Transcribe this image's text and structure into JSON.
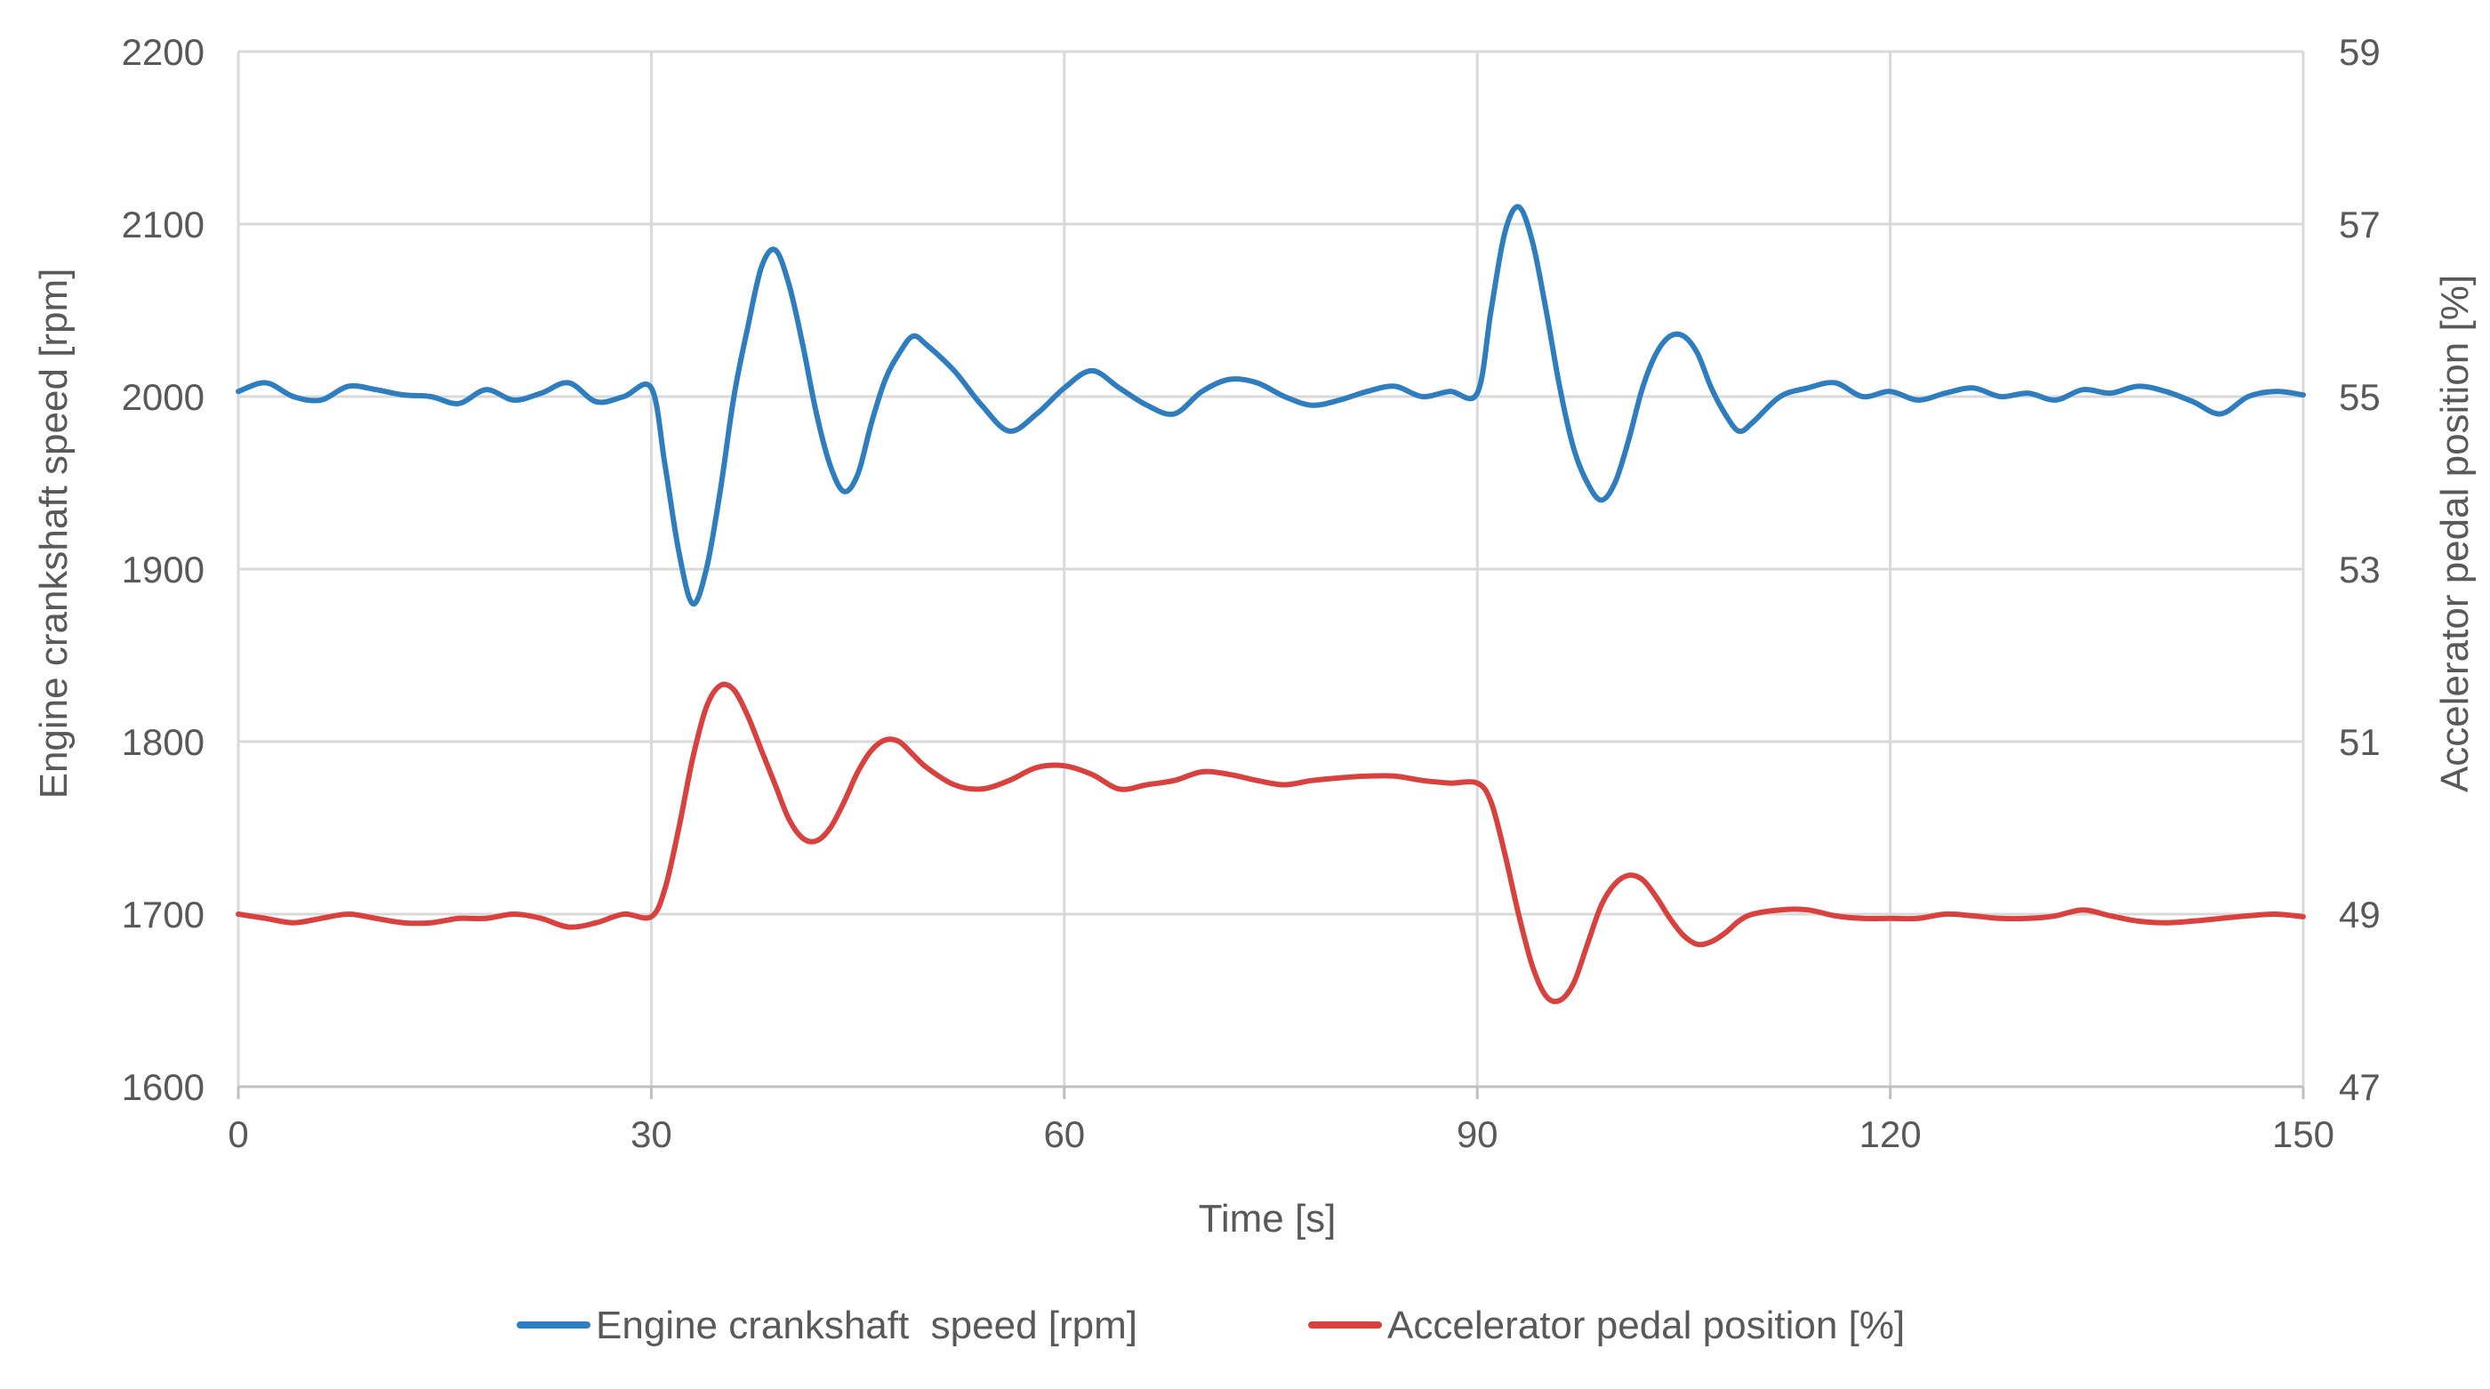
{
  "chart_data": {
    "type": "line",
    "xlabel": "Time [s]",
    "ylabel": "Engine crankshaft speed [rpm]",
    "y2label": "Accelerator pedal position [%]",
    "xlim": [
      0,
      150
    ],
    "ylim": [
      1600,
      2200
    ],
    "y2lim": [
      47,
      59
    ],
    "xticks": [
      "0",
      "30",
      "60",
      "90",
      "120",
      "150"
    ],
    "yticks": [
      "1600",
      "1700",
      "1800",
      "1900",
      "2000",
      "2100",
      "2200"
    ],
    "y2ticks": [
      "47",
      "49",
      "51",
      "53",
      "55",
      "57",
      "59"
    ],
    "grid": true,
    "legend_position": "bottom",
    "series": [
      {
        "name": "Engine crankshaft  speed [rpm]",
        "axis": "left",
        "color": "#2E7EBF",
        "x": [
          0,
          2,
          4,
          6,
          8,
          10,
          12,
          14,
          16,
          18,
          20,
          22,
          24,
          26,
          28,
          30,
          31,
          32,
          33,
          34,
          35,
          36,
          37,
          38,
          39,
          40,
          41,
          42,
          43,
          44,
          45,
          46,
          47,
          48,
          49,
          50,
          52,
          54,
          56,
          58,
          60,
          62,
          64,
          66,
          68,
          70,
          72,
          74,
          76,
          78,
          80,
          82,
          84,
          86,
          88,
          90,
          91,
          92,
          93,
          94,
          95,
          96,
          97,
          98,
          99,
          100,
          101,
          102,
          103,
          104,
          105,
          106,
          107,
          108,
          109,
          110,
          112,
          114,
          116,
          118,
          120,
          122,
          124,
          126,
          128,
          130,
          132,
          134,
          136,
          138,
          140,
          142,
          144,
          146,
          148,
          150
        ],
        "values": [
          2003,
          2008,
          2000,
          1998,
          2006,
          2004,
          2001,
          2000,
          1996,
          2004,
          1998,
          2002,
          2008,
          1997,
          2000,
          2005,
          1960,
          1910,
          1880,
          1900,
          1945,
          2000,
          2040,
          2075,
          2085,
          2065,
          2030,
          1990,
          1960,
          1945,
          1955,
          1985,
          2010,
          2025,
          2035,
          2030,
          2015,
          1995,
          1980,
          1990,
          2005,
          2015,
          2005,
          1995,
          1990,
          2003,
          2010,
          2008,
          2000,
          1995,
          1998,
          2003,
          2006,
          2000,
          2003,
          2002,
          2050,
          2095,
          2110,
          2090,
          2050,
          2005,
          1970,
          1950,
          1940,
          1950,
          1975,
          2005,
          2025,
          2035,
          2035,
          2025,
          2005,
          1990,
          1980,
          1985,
          2000,
          2005,
          2008,
          2000,
          2003,
          1998,
          2002,
          2005,
          2000,
          2002,
          1998,
          2004,
          2002,
          2006,
          2003,
          1997,
          1990,
          2000,
          2003,
          2001
        ]
      },
      {
        "name": "Accelerator pedal position [%]",
        "axis": "right",
        "color": "#D9413F",
        "x": [
          0,
          2,
          4,
          6,
          8,
          10,
          12,
          14,
          16,
          18,
          20,
          22,
          24,
          26,
          28,
          30,
          31,
          32,
          33,
          34,
          35,
          36,
          37,
          38,
          39,
          40,
          41,
          42,
          43,
          44,
          45,
          46,
          47,
          48,
          49,
          50,
          52,
          54,
          56,
          58,
          60,
          62,
          64,
          66,
          68,
          70,
          72,
          74,
          76,
          78,
          80,
          82,
          84,
          86,
          88,
          90,
          91,
          92,
          93,
          94,
          95,
          96,
          97,
          98,
          99,
          100,
          101,
          102,
          103,
          104,
          105,
          106,
          107,
          108,
          109,
          110,
          112,
          114,
          116,
          118,
          120,
          122,
          124,
          126,
          128,
          130,
          132,
          134,
          136,
          138,
          140,
          142,
          144,
          146,
          148,
          150
        ],
        "values": [
          49.0,
          48.95,
          48.9,
          48.95,
          49.0,
          48.95,
          48.9,
          48.9,
          48.95,
          48.95,
          49.0,
          48.95,
          48.85,
          48.9,
          49.0,
          48.97,
          49.3,
          50.0,
          50.8,
          51.4,
          51.65,
          51.6,
          51.3,
          50.9,
          50.5,
          50.1,
          49.88,
          49.85,
          50.0,
          50.3,
          50.65,
          50.9,
          51.02,
          51.0,
          50.85,
          50.7,
          50.5,
          50.45,
          50.55,
          50.7,
          50.72,
          50.62,
          50.45,
          50.5,
          50.55,
          50.65,
          50.62,
          50.55,
          50.5,
          50.55,
          50.58,
          50.6,
          50.6,
          50.55,
          50.52,
          50.52,
          50.3,
          49.7,
          49.0,
          48.4,
          48.05,
          48.0,
          48.2,
          48.65,
          49.1,
          49.35,
          49.45,
          49.4,
          49.2,
          48.95,
          48.75,
          48.65,
          48.68,
          48.78,
          48.92,
          49.0,
          49.05,
          49.05,
          48.98,
          48.95,
          48.95,
          48.95,
          49.0,
          48.98,
          48.95,
          48.95,
          48.98,
          49.05,
          48.98,
          48.92,
          48.9,
          48.92,
          48.95,
          48.98,
          49.0,
          48.97
        ]
      }
    ]
  }
}
